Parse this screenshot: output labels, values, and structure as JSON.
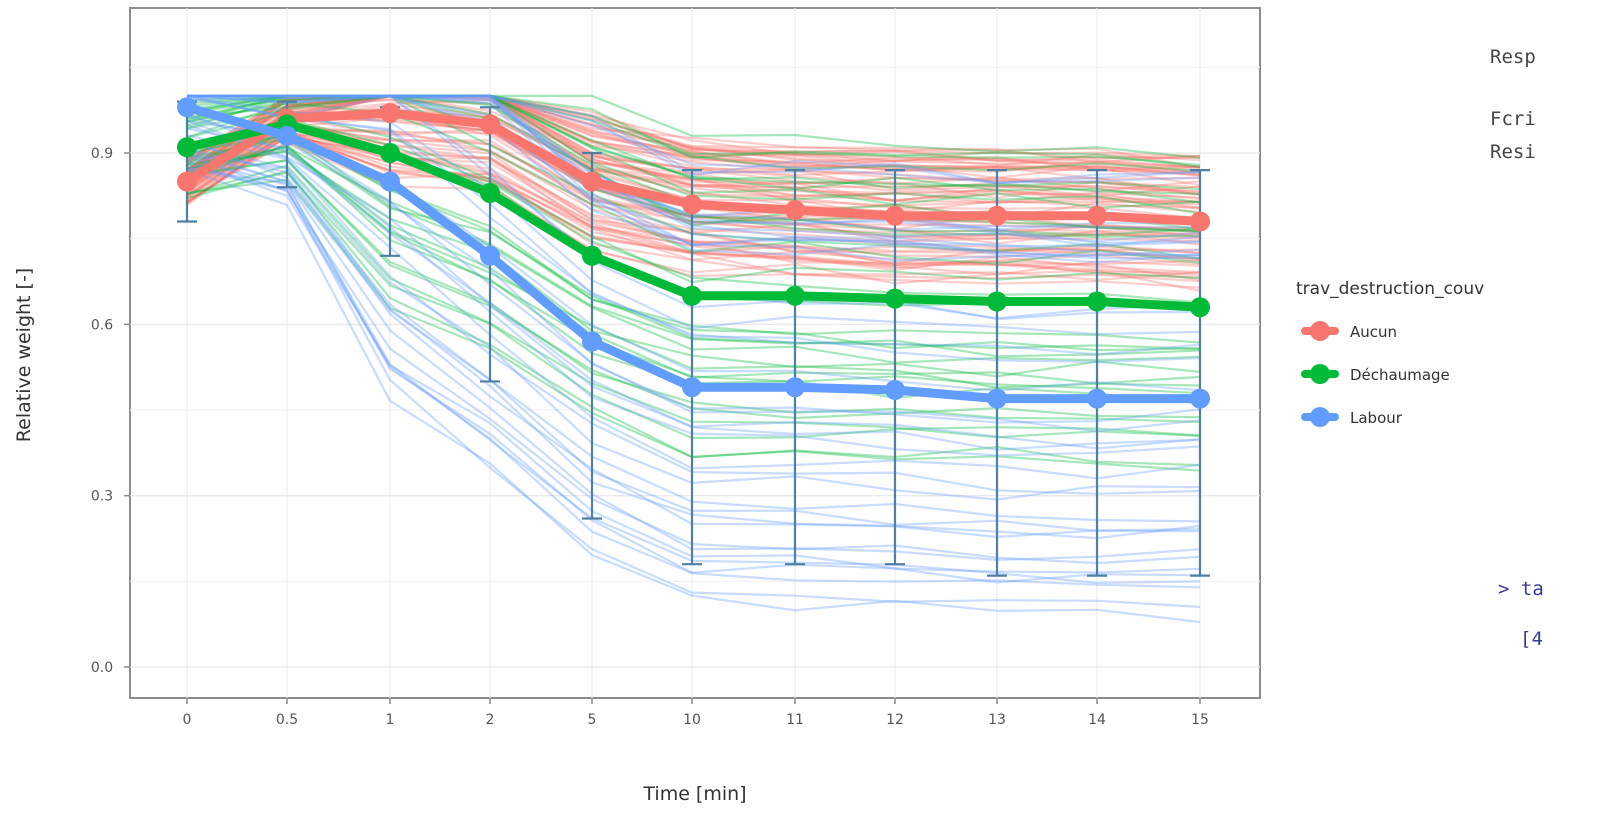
{
  "chart_data": {
    "type": "line",
    "xlabel": "Time [min]",
    "ylabel": "Relative weight [-]",
    "x": [
      "0",
      "0.5",
      "1",
      "2",
      "5",
      "10",
      "11",
      "12",
      "13",
      "14",
      "15"
    ],
    "y_ticks": [
      "0.0",
      "0.3",
      "0.6",
      "0.9"
    ],
    "ylim": [
      -0.05,
      1.1
    ],
    "grid": true,
    "legend": {
      "title": "trav_destruction_couv",
      "position": "right"
    },
    "series": [
      {
        "name": "Aucun",
        "color": "#F8766D",
        "values": [
          0.85,
          0.96,
          0.97,
          0.95,
          0.85,
          0.81,
          0.8,
          0.79,
          0.79,
          0.79,
          0.78
        ]
      },
      {
        "name": "Déchaumage",
        "color": "#00BA38",
        "values": [
          0.91,
          0.95,
          0.9,
          0.83,
          0.72,
          0.65,
          0.65,
          0.645,
          0.64,
          0.64,
          0.63
        ]
      },
      {
        "name": "Labour",
        "color": "#619CFF",
        "values": [
          0.98,
          0.93,
          0.85,
          0.72,
          0.57,
          0.49,
          0.49,
          0.485,
          0.47,
          0.47,
          0.47
        ]
      }
    ],
    "error_bars": {
      "color": "#4f7fa3",
      "lower": [
        0.78,
        0.84,
        0.72,
        0.5,
        0.26,
        0.18,
        0.18,
        0.18,
        0.16,
        0.16,
        0.16
      ],
      "upper": [
        0.99,
        0.99,
        0.98,
        0.98,
        0.9,
        0.87,
        0.87,
        0.87,
        0.87,
        0.87,
        0.87
      ]
    }
  },
  "console": {
    "line1": "Resp",
    "line2": "Fcri",
    "line3": "Resi",
    "line4": "> ta",
    "line5": "[4"
  }
}
